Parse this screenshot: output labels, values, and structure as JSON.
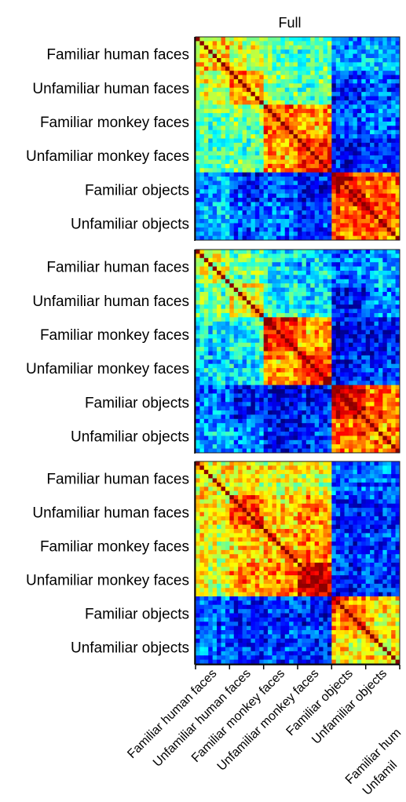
{
  "chart_data": [
    {
      "type": "heatmap",
      "title": "Full",
      "categories": [
        "Familiar human faces",
        "Unfamiliar human faces",
        "Familiar monkey faces",
        "Unfamiliar monkey faces",
        "Familiar objects",
        "Unfamiliar objects"
      ],
      "x_tick_labels": [
        "Familiar human faces",
        "Unfamiliar human faces",
        "Familiar monkey faces",
        "Unfamiliar monkey faces",
        "Familiar objects",
        "Unfamiliar objects"
      ],
      "items_per_category": 8,
      "colormap": "jet",
      "values": [
        [
          0.66,
          0.56,
          0.46,
          0.44,
          0.26,
          0.31
        ],
        [
          0.56,
          0.74,
          0.5,
          0.46,
          0.16,
          0.21
        ],
        [
          0.46,
          0.5,
          0.8,
          0.72,
          0.21,
          0.26
        ],
        [
          0.44,
          0.46,
          0.72,
          0.83,
          0.12,
          0.18
        ],
        [
          0.26,
          0.16,
          0.21,
          0.12,
          0.86,
          0.8
        ],
        [
          0.31,
          0.21,
          0.26,
          0.18,
          0.8,
          0.8
        ]
      ]
    },
    {
      "type": "heatmap",
      "title": "",
      "categories": [
        "Familiar human faces",
        "Unfamiliar human faces",
        "Familiar monkey faces",
        "Unfamiliar monkey faces",
        "Familiar objects",
        "Unfamiliar objects"
      ],
      "items_per_category": 8,
      "colormap": "jet",
      "values": [
        [
          0.56,
          0.48,
          0.36,
          0.33,
          0.23,
          0.28
        ],
        [
          0.48,
          0.63,
          0.4,
          0.36,
          0.13,
          0.26
        ],
        [
          0.36,
          0.4,
          0.86,
          0.7,
          0.1,
          0.12
        ],
        [
          0.33,
          0.36,
          0.7,
          0.83,
          0.12,
          0.16
        ],
        [
          0.23,
          0.13,
          0.1,
          0.12,
          0.88,
          0.76
        ],
        [
          0.28,
          0.26,
          0.12,
          0.16,
          0.76,
          0.73
        ]
      ]
    },
    {
      "type": "heatmap",
      "title": "",
      "categories": [
        "Familiar human faces",
        "Unfamiliar human faces",
        "Familiar monkey faces",
        "Unfamiliar monkey faces",
        "Familiar objects",
        "Unfamiliar objects"
      ],
      "items_per_category": 8,
      "colormap": "jet",
      "values": [
        [
          0.63,
          0.63,
          0.6,
          0.58,
          0.21,
          0.23
        ],
        [
          0.63,
          0.8,
          0.66,
          0.7,
          0.16,
          0.18
        ],
        [
          0.6,
          0.66,
          0.7,
          0.73,
          0.16,
          0.18
        ],
        [
          0.58,
          0.7,
          0.73,
          0.86,
          0.13,
          0.16
        ],
        [
          0.21,
          0.16,
          0.16,
          0.13,
          0.76,
          0.66
        ],
        [
          0.23,
          0.18,
          0.18,
          0.16,
          0.66,
          0.66
        ]
      ]
    }
  ],
  "partial_labels": [
    "Familiar hum",
    "Unfamil"
  ]
}
